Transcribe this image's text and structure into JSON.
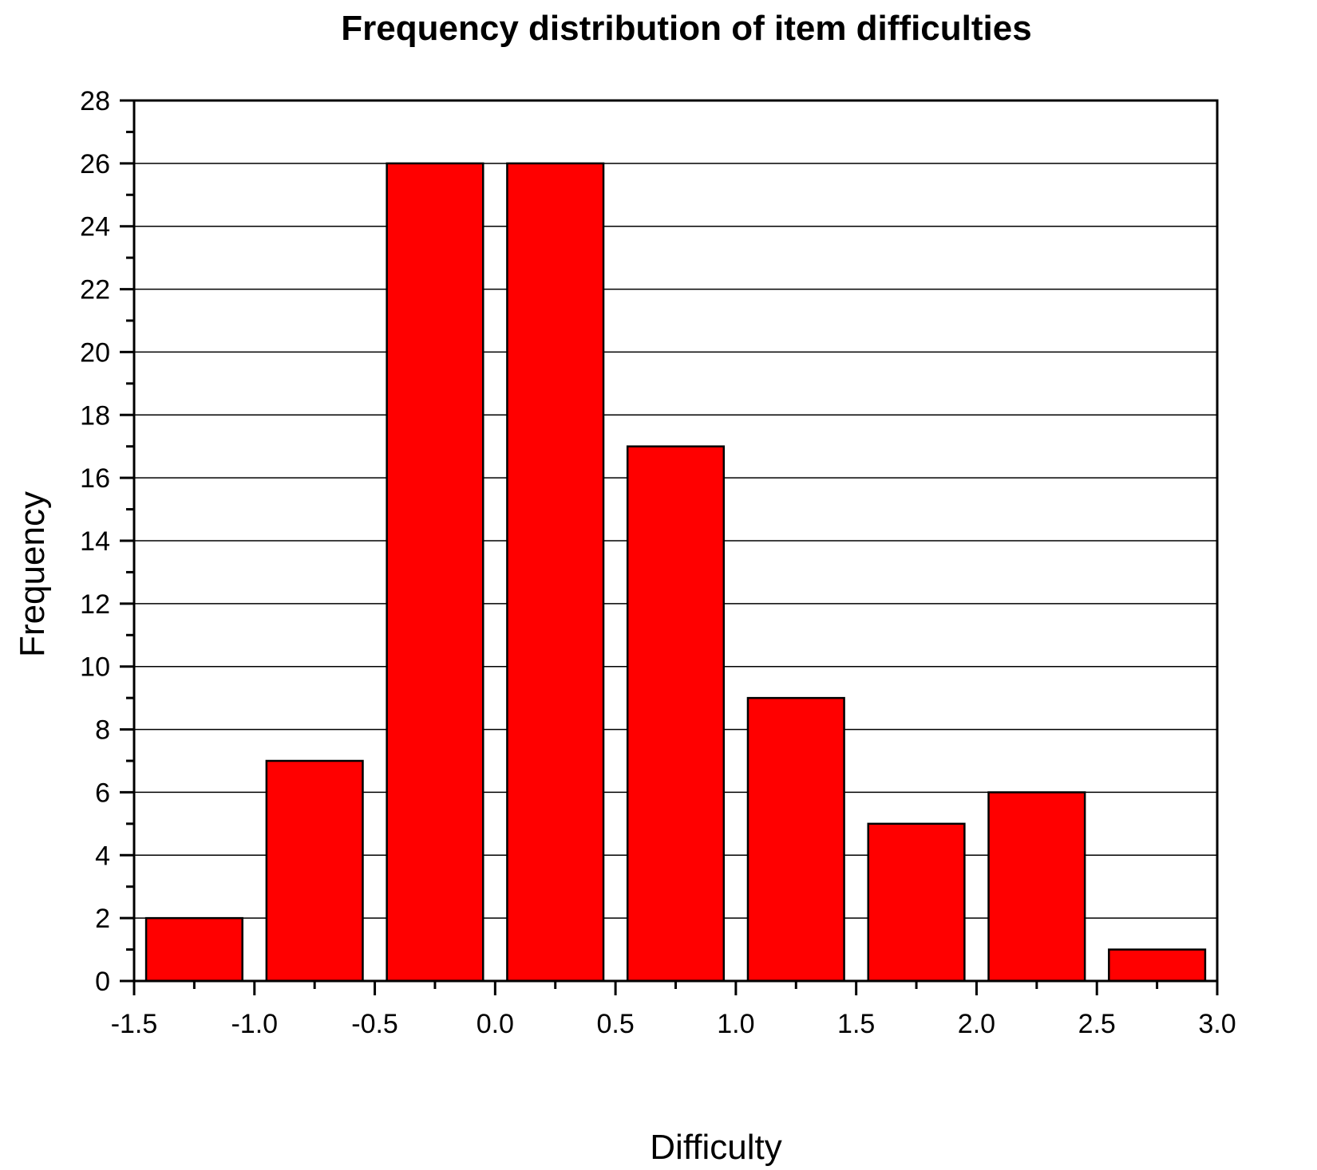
{
  "chart_data": {
    "type": "bar",
    "title": "Frequency distribution of item difficulties",
    "xlabel": "Difficulty",
    "ylabel": "Frequency",
    "bin_edges": [
      -1.5,
      -1.0,
      -0.5,
      0.0,
      0.5,
      1.0,
      1.5,
      2.0,
      2.5,
      3.0
    ],
    "values": [
      2,
      7,
      26,
      26,
      17,
      9,
      5,
      6,
      1
    ],
    "xlim": [
      -1.5,
      3.0
    ],
    "ylim": [
      0,
      28
    ],
    "x_ticks": [
      "-1.5",
      "-1.0",
      "-0.5",
      "0.0",
      "0.5",
      "1.0",
      "1.5",
      "2.0",
      "2.5",
      "3.0"
    ],
    "y_ticks": [
      "0",
      "2",
      "4",
      "6",
      "8",
      "10",
      "12",
      "14",
      "16",
      "18",
      "20",
      "22",
      "24",
      "26",
      "28"
    ],
    "grid": "horizontal",
    "bar_color": "#ff0000",
    "edge_color": "#000000"
  }
}
